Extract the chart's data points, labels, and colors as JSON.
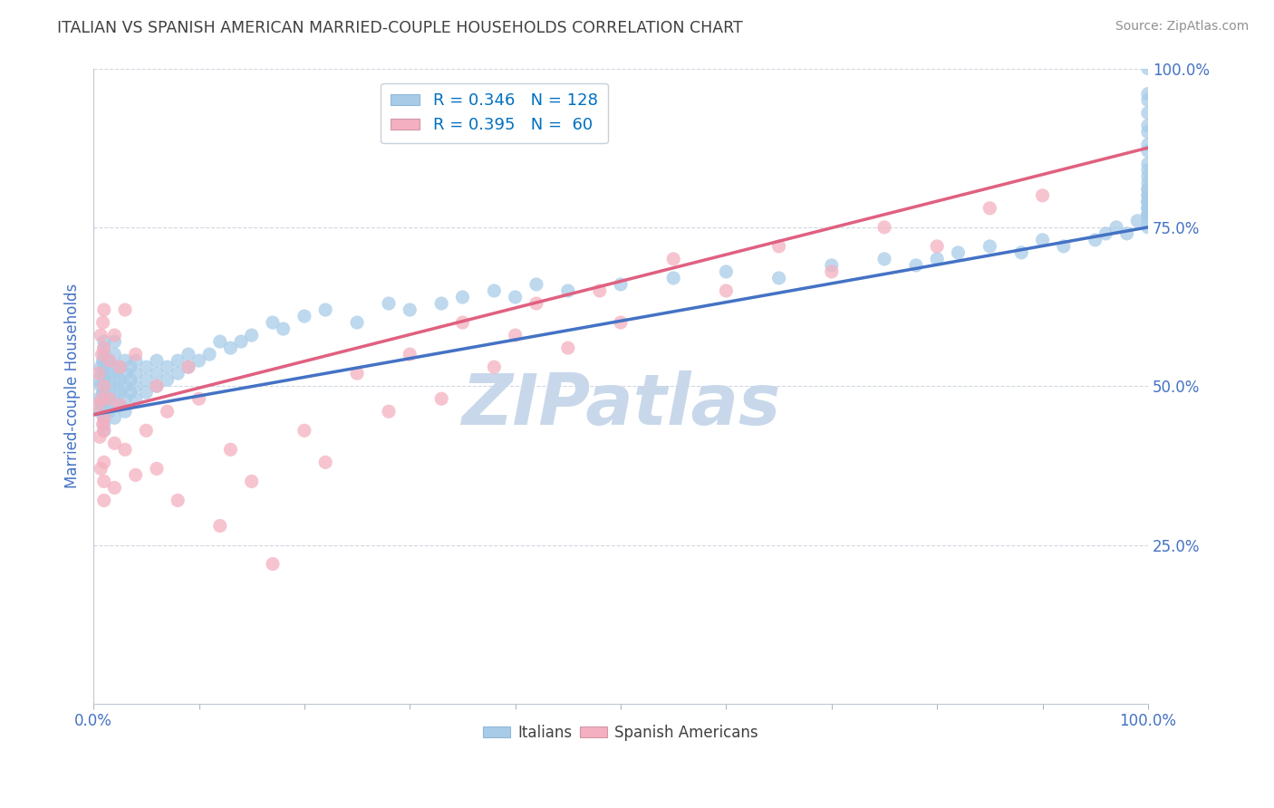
{
  "title": "ITALIAN VS SPANISH AMERICAN MARRIED-COUPLE HOUSEHOLDS CORRELATION CHART",
  "source": "Source: ZipAtlas.com",
  "ylabel": "Married-couple Households",
  "xlim": [
    0,
    1.0
  ],
  "ylim": [
    0,
    1.0
  ],
  "ytick_positions": [
    0.25,
    0.5,
    0.75,
    1.0
  ],
  "ytick_labels": [
    "25.0%",
    "50.0%",
    "75.0%",
    "100.0%"
  ],
  "italian_R": 0.346,
  "italian_N": 128,
  "spanish_R": 0.395,
  "spanish_N": 60,
  "italian_color": "#a8cce8",
  "spanish_color": "#f4b0c0",
  "italian_line_color": "#4472c4",
  "spanish_line_color": "#e06080",
  "legend_R_color": "#0070c0",
  "watermark_color": "#c8d8ea",
  "background_color": "#ffffff",
  "grid_color": "#d0d8e0",
  "title_color": "#404040",
  "source_color": "#909090",
  "axis_label_color": "#4472c4",
  "tick_label_color": "#4472c4",
  "italian_x": [
    0.005,
    0.005,
    0.006,
    0.007,
    0.007,
    0.008,
    0.008,
    0.009,
    0.009,
    0.01,
    0.01,
    0.01,
    0.01,
    0.01,
    0.01,
    0.01,
    0.01,
    0.01,
    0.01,
    0.01,
    0.01,
    0.01,
    0.01,
    0.01,
    0.015,
    0.015,
    0.015,
    0.015,
    0.015,
    0.02,
    0.02,
    0.02,
    0.02,
    0.02,
    0.02,
    0.02,
    0.025,
    0.025,
    0.025,
    0.025,
    0.03,
    0.03,
    0.03,
    0.03,
    0.03,
    0.035,
    0.035,
    0.035,
    0.04,
    0.04,
    0.04,
    0.04,
    0.05,
    0.05,
    0.05,
    0.06,
    0.06,
    0.06,
    0.07,
    0.07,
    0.08,
    0.08,
    0.09,
    0.09,
    0.1,
    0.11,
    0.12,
    0.13,
    0.14,
    0.15,
    0.17,
    0.18,
    0.2,
    0.22,
    0.25,
    0.28,
    0.3,
    0.33,
    0.35,
    0.38,
    0.4,
    0.42,
    0.45,
    0.5,
    0.55,
    0.6,
    0.65,
    0.7,
    0.75,
    0.78,
    0.8,
    0.82,
    0.85,
    0.88,
    0.9,
    0.92,
    0.95,
    0.96,
    0.97,
    0.98,
    0.99,
    1.0,
    1.0,
    1.0,
    1.0,
    1.0,
    1.0,
    1.0,
    1.0,
    1.0,
    1.0,
    1.0,
    1.0,
    1.0,
    1.0,
    1.0,
    1.0,
    1.0,
    1.0,
    1.0,
    1.0,
    1.0,
    1.0,
    1.0,
    1.0,
    1.0,
    1.0,
    1.0
  ],
  "italian_y": [
    0.48,
    0.51,
    0.46,
    0.5,
    0.53,
    0.47,
    0.52,
    0.49,
    0.54,
    0.45,
    0.47,
    0.49,
    0.5,
    0.51,
    0.52,
    0.53,
    0.46,
    0.48,
    0.54,
    0.55,
    0.43,
    0.44,
    0.56,
    0.57,
    0.48,
    0.5,
    0.52,
    0.46,
    0.54,
    0.47,
    0.49,
    0.51,
    0.53,
    0.45,
    0.55,
    0.57,
    0.49,
    0.51,
    0.47,
    0.53,
    0.5,
    0.52,
    0.48,
    0.54,
    0.46,
    0.51,
    0.53,
    0.49,
    0.5,
    0.52,
    0.48,
    0.54,
    0.51,
    0.53,
    0.49,
    0.52,
    0.5,
    0.54,
    0.53,
    0.51,
    0.52,
    0.54,
    0.53,
    0.55,
    0.54,
    0.55,
    0.57,
    0.56,
    0.57,
    0.58,
    0.6,
    0.59,
    0.61,
    0.62,
    0.6,
    0.63,
    0.62,
    0.63,
    0.64,
    0.65,
    0.64,
    0.66,
    0.65,
    0.66,
    0.67,
    0.68,
    0.67,
    0.69,
    0.7,
    0.69,
    0.7,
    0.71,
    0.72,
    0.71,
    0.73,
    0.72,
    0.73,
    0.74,
    0.75,
    0.74,
    0.76,
    0.75,
    0.77,
    0.76,
    0.78,
    0.77,
    0.79,
    0.78,
    0.8,
    0.77,
    0.79,
    0.81,
    0.78,
    0.8,
    0.82,
    0.85,
    0.79,
    0.81,
    0.83,
    0.88,
    0.91,
    0.95,
    0.93,
    0.96,
    0.9,
    0.87,
    0.84,
    1.0
  ],
  "spanish_x": [
    0.004,
    0.005,
    0.006,
    0.007,
    0.007,
    0.008,
    0.008,
    0.009,
    0.009,
    0.01,
    0.01,
    0.01,
    0.01,
    0.01,
    0.01,
    0.01,
    0.01,
    0.015,
    0.015,
    0.02,
    0.02,
    0.02,
    0.025,
    0.025,
    0.03,
    0.03,
    0.04,
    0.04,
    0.05,
    0.06,
    0.06,
    0.07,
    0.08,
    0.09,
    0.1,
    0.12,
    0.13,
    0.15,
    0.17,
    0.2,
    0.22,
    0.25,
    0.28,
    0.3,
    0.33,
    0.35,
    0.38,
    0.4,
    0.42,
    0.45,
    0.48,
    0.5,
    0.55,
    0.6,
    0.65,
    0.7,
    0.75,
    0.8,
    0.85,
    0.9
  ],
  "spanish_y": [
    0.47,
    0.52,
    0.42,
    0.58,
    0.37,
    0.48,
    0.55,
    0.44,
    0.6,
    0.5,
    0.43,
    0.35,
    0.62,
    0.38,
    0.56,
    0.45,
    0.32,
    0.48,
    0.54,
    0.41,
    0.58,
    0.34,
    0.47,
    0.53,
    0.4,
    0.62,
    0.36,
    0.55,
    0.43,
    0.5,
    0.37,
    0.46,
    0.32,
    0.53,
    0.48,
    0.28,
    0.4,
    0.35,
    0.22,
    0.43,
    0.38,
    0.52,
    0.46,
    0.55,
    0.48,
    0.6,
    0.53,
    0.58,
    0.63,
    0.56,
    0.65,
    0.6,
    0.7,
    0.65,
    0.72,
    0.68,
    0.75,
    0.72,
    0.78,
    0.8
  ],
  "italian_line_start_y": 0.455,
  "italian_line_end_y": 0.75,
  "spanish_line_start_y": 0.455,
  "spanish_line_end_y": 0.875
}
